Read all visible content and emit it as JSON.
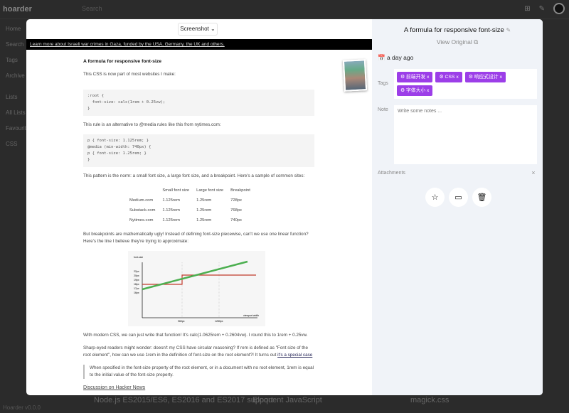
{
  "app": {
    "name": "hoarder",
    "search_placeholder": "Search",
    "version": "Hoarder v0.0.0"
  },
  "sidebar": {
    "items": [
      "Home",
      "Search",
      "Tags",
      "Archive"
    ],
    "lists_header": "Lists",
    "lists": [
      "All Lists",
      "Favourites",
      "CSS"
    ]
  },
  "cards": [
    "Node.js ES2015/ES6, ES2016 and ES2017 support",
    "Eloquent JavaScript",
    "magick.css"
  ],
  "viewer": {
    "mode": "Screenshot",
    "banner": "Learn more about Israeli war crimes in Gaza, funded by the USA, Germany, the UK and others."
  },
  "article": {
    "title": "A formula for responsive font-size",
    "p1": "This CSS is now part of most websites I make:",
    "code1": ":root {\n  font-size: calc(1rem + 0.25vw);\n}",
    "p2": "This rule is an alternative to @media rules like this from nytimes.com:",
    "code2": "p { font-size: 1.125rem; }\n@media (min-width: 740px) {\np { font-size: 1.25rem; }\n}",
    "p3": "This pattern is the norm: a small font size, a large font size, and a breakpoint. Here's a sample of common sites:",
    "table": {
      "headers": [
        "",
        "Small font size",
        "Large font size",
        "Breakpoint"
      ],
      "rows": [
        [
          "Medium.com",
          "1.125rem",
          "1.25rem",
          "728px"
        ],
        [
          "Substack.com",
          "1.125rem",
          "1.25rem",
          "768px"
        ],
        [
          "Nytimes.com",
          "1.125rem",
          "1.25rem",
          "740px"
        ]
      ]
    },
    "p4": "But breakpoints are mathematically ugly! Instead of defining font-size piecewise, can't we use one linear function? Here's the line I believe they're trying to approximate:",
    "figure": {
      "ylabel": "font-size",
      "xlabel": "viewport width",
      "yticks": [
        "22px",
        "20px",
        "19px",
        "18px",
        "17px",
        "16px"
      ],
      "xticks": [
        "960px",
        "1280px"
      ]
    },
    "p5": "With modern CSS, we can just write that function! It's calc(1.0625rem + 0.2604vw). I round this to 1rem + 0.25vw.",
    "p6": "Sharp-eyed readers might wonder: doesn't my CSS have circular reasoning? If rem is defined as \"Font size of the root element\", how can we use 1rem in the definition of font-size on the root element?! It turns out ",
    "p6_link": "it's a special case",
    "quote": "When specified in the font-size property of the root element, or in a document with no root element, 1rem is equal to the initial value of the font-size property.",
    "footer": "Discussion on Hacker News"
  },
  "details": {
    "title": "A formula for responsive font-size",
    "view_original": "View Original",
    "date": "a day ago",
    "tags_label": "Tags",
    "tags": [
      "前端开发",
      "CSS",
      "响应式设计",
      "字体大小"
    ],
    "note_label": "Note",
    "note_placeholder": "Write some notes ...",
    "attachments_label": "Attachments",
    "tag_color": "#9c3ee8"
  }
}
